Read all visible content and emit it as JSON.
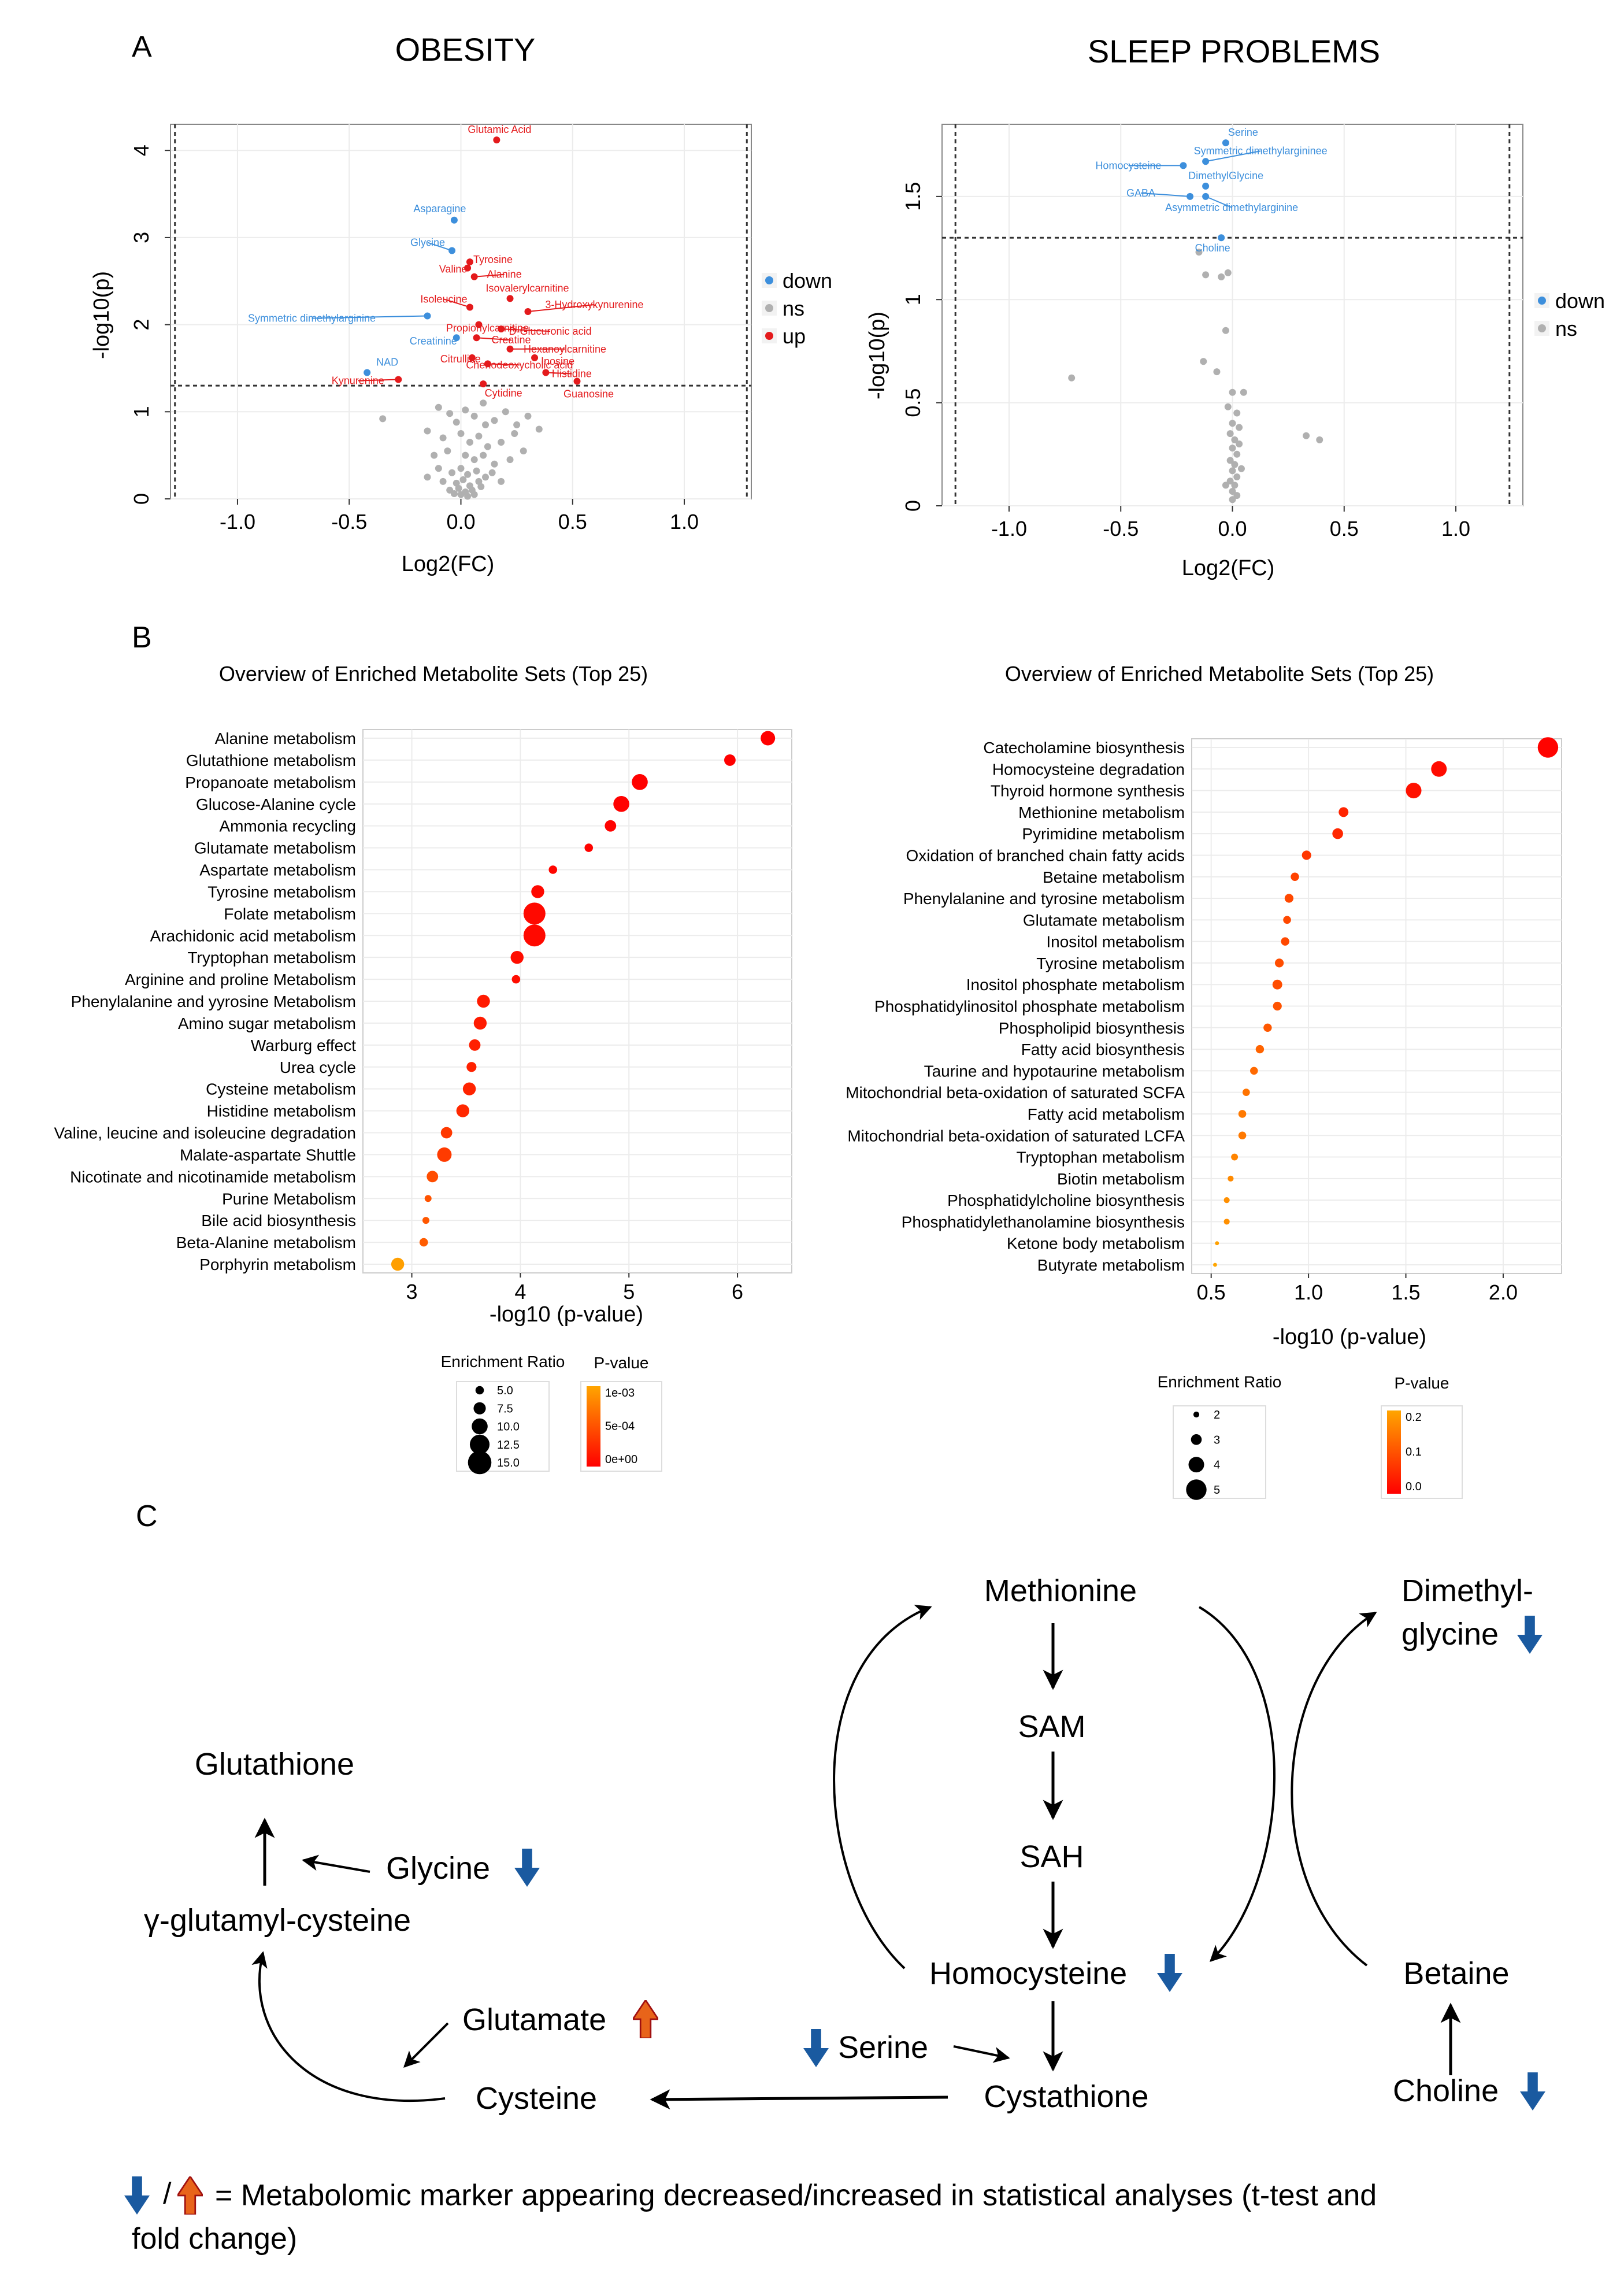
{
  "panel_labels": {
    "a": "A",
    "b": "B",
    "c": "C"
  },
  "colors": {
    "up": "#e41a1c",
    "down": "#3d8fdc",
    "ns": "#b0b0b0",
    "arrow_down": "#1a5aa0",
    "arrow_up": "#d94a10",
    "p_high": "#ff0000",
    "p_low": "#ffa500"
  },
  "chart_data": [
    {
      "type": "scatter",
      "id": "volcano_obesity",
      "title": "OBESITY",
      "xlabel": "Log2(FC)",
      "ylabel": "-log10(p)",
      "xlim": [
        -1.3,
        1.3
      ],
      "ylim": [
        0,
        4.3
      ],
      "xticks": [
        "-1.0",
        "-0.5",
        "0.0",
        "0.5",
        "1.0"
      ],
      "xtick_values": [
        -1.0,
        -0.5,
        0.0,
        0.5,
        1.0
      ],
      "yticks": [
        "0",
        "1",
        "2",
        "3",
        "4"
      ],
      "ytick_values": [
        0,
        1,
        2,
        3,
        4
      ],
      "fc_threshold": 1.28,
      "p_threshold": 1.3,
      "legend": [
        {
          "label": "down",
          "group": "down"
        },
        {
          "label": "ns",
          "group": "ns"
        },
        {
          "label": "up",
          "group": "up"
        }
      ],
      "labeled_points": [
        {
          "name": "Glutamic Acid",
          "x": 0.16,
          "y": 4.12,
          "group": "up"
        },
        {
          "name": "Asparagine",
          "x": -0.03,
          "y": 3.2,
          "group": "down"
        },
        {
          "name": "Glycine",
          "x": -0.04,
          "y": 2.85,
          "group": "down"
        },
        {
          "name": "Tyrosine",
          "x": 0.04,
          "y": 2.72,
          "group": "up"
        },
        {
          "name": "Valine",
          "x": 0.03,
          "y": 2.65,
          "group": "up"
        },
        {
          "name": "Alanine",
          "x": 0.06,
          "y": 2.55,
          "group": "up"
        },
        {
          "name": "Isovalerylcarnitine",
          "x": 0.22,
          "y": 2.3,
          "group": "up"
        },
        {
          "name": "Isoleucine",
          "x": 0.04,
          "y": 2.2,
          "group": "up"
        },
        {
          "name": "Propionylcarnitine",
          "x": 0.08,
          "y": 2.0,
          "group": "up"
        },
        {
          "name": "3-Hydroxykynurenine",
          "x": 0.3,
          "y": 2.15,
          "group": "up"
        },
        {
          "name": "D-Glucuronic acid",
          "x": 0.18,
          "y": 1.95,
          "group": "up"
        },
        {
          "name": "Symmetric dimethylarginine",
          "x": -0.15,
          "y": 2.1,
          "group": "down"
        },
        {
          "name": "Creatinine",
          "x": -0.02,
          "y": 1.85,
          "group": "down"
        },
        {
          "name": "Creatine",
          "x": 0.07,
          "y": 1.85,
          "group": "up"
        },
        {
          "name": "Hexanoylcarnitine",
          "x": 0.22,
          "y": 1.72,
          "group": "up"
        },
        {
          "name": "Citrulline",
          "x": 0.05,
          "y": 1.62,
          "group": "up"
        },
        {
          "name": "Inosine",
          "x": 0.33,
          "y": 1.62,
          "group": "up"
        },
        {
          "name": "NAD",
          "x": -0.42,
          "y": 1.45,
          "group": "down"
        },
        {
          "name": "Chenodeoxycholic acid",
          "x": 0.12,
          "y": 1.55,
          "group": "up"
        },
        {
          "name": "Histidine",
          "x": 0.38,
          "y": 1.45,
          "group": "up"
        },
        {
          "name": "Kynurenine",
          "x": -0.28,
          "y": 1.37,
          "group": "up"
        },
        {
          "name": "Cytidine",
          "x": 0.1,
          "y": 1.32,
          "group": "up"
        },
        {
          "name": "Guanosine",
          "x": 0.52,
          "y": 1.35,
          "group": "up"
        }
      ],
      "ns_points": [
        [
          -0.35,
          0.92
        ],
        [
          -0.1,
          1.05
        ],
        [
          -0.05,
          0.98
        ],
        [
          0.02,
          1.02
        ],
        [
          0.06,
          0.95
        ],
        [
          0.1,
          1.1
        ],
        [
          0.15,
          0.9
        ],
        [
          0.2,
          1.0
        ],
        [
          0.25,
          0.85
        ],
        [
          0.35,
          0.8
        ],
        [
          -0.15,
          0.78
        ],
        [
          -0.08,
          0.7
        ],
        [
          0.0,
          0.75
        ],
        [
          0.04,
          0.65
        ],
        [
          0.08,
          0.72
        ],
        [
          0.12,
          0.6
        ],
        [
          0.18,
          0.65
        ],
        [
          0.28,
          0.55
        ],
        [
          -0.12,
          0.5
        ],
        [
          -0.06,
          0.55
        ],
        [
          0.02,
          0.5
        ],
        [
          0.06,
          0.45
        ],
        [
          0.1,
          0.5
        ],
        [
          0.15,
          0.4
        ],
        [
          0.22,
          0.45
        ],
        [
          -0.1,
          0.35
        ],
        [
          -0.04,
          0.3
        ],
        [
          0.0,
          0.35
        ],
        [
          0.03,
          0.28
        ],
        [
          0.07,
          0.32
        ],
        [
          0.11,
          0.25
        ],
        [
          -0.08,
          0.2
        ],
        [
          -0.02,
          0.18
        ],
        [
          0.01,
          0.22
        ],
        [
          0.04,
          0.15
        ],
        [
          0.08,
          0.2
        ],
        [
          -0.05,
          0.1
        ],
        [
          -0.01,
          0.12
        ],
        [
          0.02,
          0.08
        ],
        [
          0.05,
          0.1
        ],
        [
          0.09,
          0.14
        ],
        [
          0.0,
          0.05
        ],
        [
          0.03,
          0.03
        ],
        [
          -0.03,
          0.06
        ],
        [
          0.06,
          0.05
        ],
        [
          0.14,
          0.3
        ],
        [
          0.18,
          0.2
        ],
        [
          -0.15,
          0.25
        ],
        [
          0.24,
          0.75
        ],
        [
          0.3,
          0.95
        ],
        [
          0.11,
          0.85
        ],
        [
          -0.02,
          0.88
        ]
      ]
    },
    {
      "type": "scatter",
      "id": "volcano_sleep",
      "title": "SLEEP PROBLEMS",
      "xlabel": "Log2(FC)",
      "ylabel": "-log10(p)",
      "xlim": [
        -1.3,
        1.3
      ],
      "ylim": [
        0,
        1.85
      ],
      "xticks": [
        "-1.0",
        "-0.5",
        "0.0",
        "0.5",
        "1.0"
      ],
      "xtick_values": [
        -1.0,
        -0.5,
        0.0,
        0.5,
        1.0
      ],
      "yticks": [
        "0",
        "0.5",
        "1",
        "1.5"
      ],
      "ytick_values": [
        0,
        0.5,
        1.0,
        1.5
      ],
      "fc_threshold": 1.24,
      "p_threshold": 1.3,
      "legend": [
        {
          "label": "down",
          "group": "down"
        },
        {
          "label": "ns",
          "group": "ns"
        }
      ],
      "labeled_points": [
        {
          "name": "Serine",
          "x": -0.03,
          "y": 1.76,
          "group": "down"
        },
        {
          "name": "Symmetric dimethylargininee",
          "x": -0.12,
          "y": 1.67,
          "group": "down"
        },
        {
          "name": "Homocysteine",
          "x": -0.22,
          "y": 1.65,
          "group": "down"
        },
        {
          "name": "DimethylGlycine",
          "x": -0.12,
          "y": 1.55,
          "group": "down"
        },
        {
          "name": "GABA",
          "x": -0.19,
          "y": 1.5,
          "group": "down"
        },
        {
          "name": "Asymmetric dimethylarginine",
          "x": -0.12,
          "y": 1.5,
          "group": "down"
        },
        {
          "name": "Choline",
          "x": -0.05,
          "y": 1.3,
          "group": "down"
        }
      ],
      "ns_points": [
        [
          -0.12,
          1.12
        ],
        [
          -0.05,
          1.11
        ],
        [
          -0.02,
          1.13
        ],
        [
          -0.15,
          1.23
        ],
        [
          -0.03,
          0.85
        ],
        [
          -0.07,
          0.65
        ],
        [
          -0.13,
          0.7
        ],
        [
          -0.72,
          0.62
        ],
        [
          0.0,
          0.55
        ],
        [
          0.05,
          0.55
        ],
        [
          -0.02,
          0.48
        ],
        [
          0.02,
          0.45
        ],
        [
          0.0,
          0.4
        ],
        [
          0.03,
          0.38
        ],
        [
          -0.01,
          0.35
        ],
        [
          0.01,
          0.32
        ],
        [
          0.0,
          0.28
        ],
        [
          0.02,
          0.25
        ],
        [
          -0.01,
          0.22
        ],
        [
          0.01,
          0.2
        ],
        [
          0.0,
          0.17
        ],
        [
          0.02,
          0.14
        ],
        [
          -0.01,
          0.12
        ],
        [
          0.01,
          0.1
        ],
        [
          0.0,
          0.07
        ],
        [
          0.02,
          0.05
        ],
        [
          0.0,
          0.03
        ],
        [
          0.33,
          0.34
        ],
        [
          0.39,
          0.32
        ],
        [
          0.04,
          0.18
        ],
        [
          -0.03,
          0.1
        ],
        [
          0.03,
          0.3
        ]
      ]
    },
    {
      "type": "scatter",
      "id": "enrichment_obesity",
      "title": "Overview  of Enriched Metabolite  Sets (Top 25)",
      "xlabel": "-log10 (p-value)",
      "xlim": [
        2.55,
        6.5
      ],
      "xticks": [
        "3",
        "4",
        "5",
        "6"
      ],
      "xtick_values": [
        3,
        4,
        5,
        6
      ],
      "categories": [
        "Alanine metabolism",
        "Glutathione metabolism",
        "Propanoate metabolism",
        "Glucose-Alanine cycle",
        "Ammonia recycling",
        "Glutamate metabolism",
        "Aspartate metabolism",
        "Tyrosine metabolism",
        "Folate metabolism",
        "Arachidonic acid metabolism",
        "Tryptophan metabolism",
        "Arginine and proline Metabolism",
        "Phenylalanine and yyrosine Metabolism",
        "Amino sugar metabolism",
        "Warburg effect",
        "Urea cycle",
        "Cysteine metabolism",
        "Histidine metabolism",
        "Valine, leucine and isoleucine degradation",
        "Malate-aspartate Shuttle",
        "Nicotinate and nicotinamide metabolism",
        "Purine Metabolism",
        "Bile acid biosynthesis",
        "Beta-Alanine metabolism",
        "Porphyrin metabolism"
      ],
      "values": [
        6.28,
        5.93,
        5.1,
        4.93,
        4.83,
        4.63,
        4.3,
        4.16,
        4.13,
        4.13,
        3.97,
        3.96,
        3.66,
        3.63,
        3.58,
        3.55,
        3.53,
        3.47,
        3.32,
        3.3,
        3.19,
        3.15,
        3.13,
        3.11,
        2.87
      ],
      "enrichment_ratio": [
        9,
        7,
        10,
        10,
        7,
        5,
        5,
        8,
        14,
        14,
        8,
        5,
        8,
        8,
        7,
        6,
        8,
        8,
        7,
        9,
        7,
        4,
        4,
        5,
        8
      ],
      "p_value": [
        5e-07,
        1e-06,
        8e-06,
        1.2e-05,
        1.5e-05,
        2.3e-05,
        5e-05,
        7e-05,
        7.4e-05,
        7.4e-05,
        0.00011,
        0.00011,
        0.00022,
        0.00023,
        0.00026,
        0.00028,
        0.0003,
        0.00034,
        0.00048,
        0.0005,
        0.00065,
        0.0007,
        0.00074,
        0.00078,
        0.00135
      ],
      "size_legend_title": "Enrichment Ratio",
      "size_legend": [
        {
          "label": "5.0",
          "value": 5
        },
        {
          "label": "7.5",
          "value": 7.5
        },
        {
          "label": "10.0",
          "value": 10
        },
        {
          "label": "12.5",
          "value": 12.5
        },
        {
          "label": "15.0",
          "value": 15
        }
      ],
      "color_legend_title": "P-value",
      "color_legend": [
        "1e-03",
        "5e-04",
        "0e+00"
      ]
    },
    {
      "type": "scatter",
      "id": "enrichment_sleep",
      "title": "Overview  of Enriched Metabolite  Sets (Top 25)",
      "xlabel": "-log10 (p-value)",
      "xlim": [
        0.4,
        2.3
      ],
      "xticks": [
        "0.5",
        "1.0",
        "1.5",
        "2.0"
      ],
      "xtick_values": [
        0.5,
        1.0,
        1.5,
        2.0
      ],
      "categories": [
        "Catecholamine biosynthesis",
        "Homocysteine degradation",
        "Thyroid hormone synthesis",
        "Methionine metabolism",
        "Pyrimidine metabolism",
        "Oxidation of branched chain fatty acids",
        "Betaine metabolism",
        "Phenylalanine and tyrosine metabolism",
        "Glutamate metabolism",
        "Inositol metabolism",
        "Tyrosine metabolism",
        "Inositol phosphate metabolism",
        "Phosphatidylinositol phosphate metabolism",
        "Phospholipid biosynthesis",
        "Fatty acid biosynthesis",
        "Taurine and hypotaurine metabolism",
        "Mitochondrial beta-oxidation of saturated SCFA",
        "Fatty acid metabolism",
        "Mitochondrial beta-oxidation of saturated LCFA",
        "Tryptophan metabolism",
        "Biotin metabolism",
        "Phosphatidylcholine biosynthesis",
        "Phosphatidylethanolamine biosynthesis",
        "Ketone body metabolism",
        "Butyrate metabolism"
      ],
      "values": [
        2.23,
        1.67,
        1.54,
        1.18,
        1.15,
        0.99,
        0.93,
        0.9,
        0.89,
        0.88,
        0.85,
        0.84,
        0.84,
        0.79,
        0.75,
        0.72,
        0.68,
        0.66,
        0.66,
        0.62,
        0.6,
        0.58,
        0.58,
        0.53,
        0.52
      ],
      "enrichment_ratio": [
        5,
        4,
        4,
        2.8,
        3,
        2.7,
        2.5,
        2.6,
        2.4,
        2.5,
        2.6,
        2.8,
        2.6,
        2.5,
        2.5,
        2.4,
        2.3,
        2.4,
        2.4,
        2.2,
        2,
        2,
        2,
        1.6,
        1.6
      ],
      "p_value": [
        0.006,
        0.02,
        0.03,
        0.066,
        0.071,
        0.1,
        0.12,
        0.13,
        0.13,
        0.13,
        0.14,
        0.14,
        0.15,
        0.16,
        0.18,
        0.19,
        0.21,
        0.22,
        0.22,
        0.24,
        0.25,
        0.26,
        0.26,
        0.29,
        0.3
      ],
      "size_legend_title": "Enrichment Ratio",
      "size_legend": [
        {
          "label": "2",
          "value": 2
        },
        {
          "label": "3",
          "value": 3
        },
        {
          "label": "4",
          "value": 4
        },
        {
          "label": "5",
          "value": 5
        }
      ],
      "color_legend_title": "P-value",
      "color_legend": [
        "0.2",
        "0.1",
        "0.0"
      ]
    }
  ],
  "pathway": {
    "methionine": "Methionine",
    "sam": "SAM",
    "sah": "SAH",
    "homocysteine": "Homocysteine",
    "cystathione": "Cystathione",
    "serine": "Serine",
    "cysteine": "Cysteine",
    "glutamate": "Glutamate",
    "glycine": "Glycine",
    "gamma_glutamyl": "γ-glutamyl-cysteine",
    "glutathione": "Glutathione",
    "dimethyl_line1": "Dimethyl-",
    "dimethyl_line2": "glycine",
    "betaine": "Betaine",
    "choline": "Choline",
    "legend_sep": "/",
    "legend_line1": "= Metabolomic marker appearing decreased/increased in statistical analyses (t-test and",
    "legend_line2": "fold change)"
  }
}
